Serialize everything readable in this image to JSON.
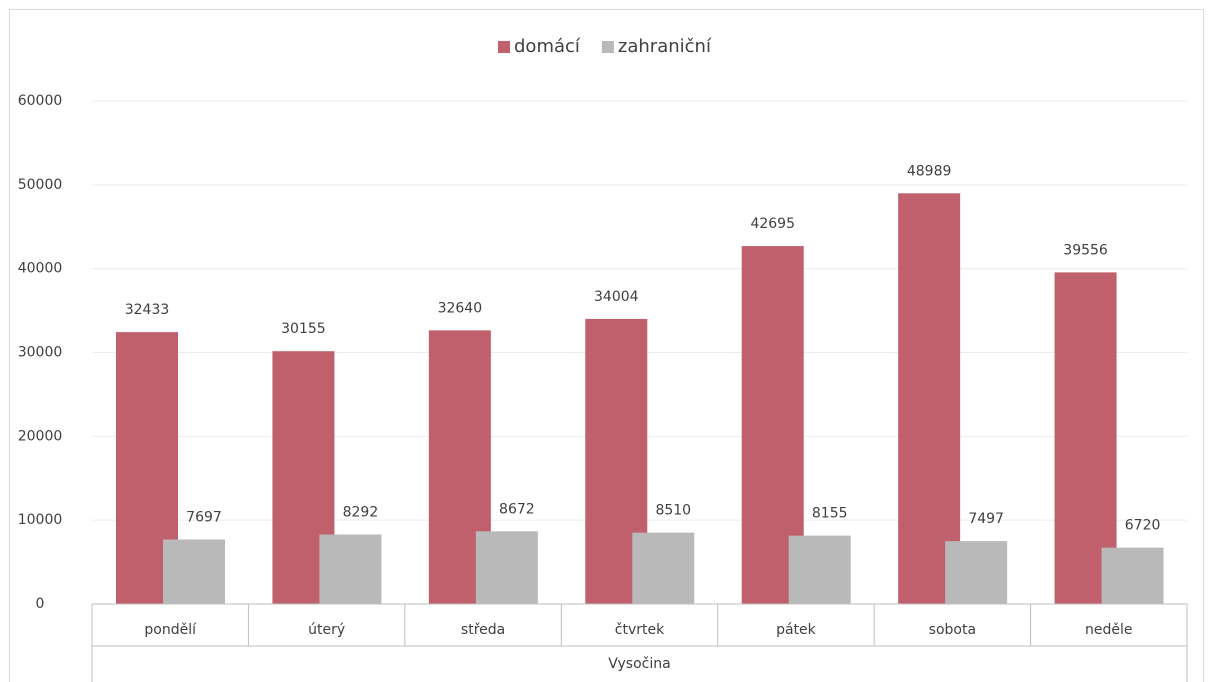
{
  "chart_data": {
    "type": "bar",
    "categories": [
      "pondělí",
      "úterý",
      "středa",
      "čtvrtek",
      "pátek",
      "sobota",
      "neděle"
    ],
    "group_label": "Vysočina",
    "series": [
      {
        "name": "domácí",
        "color": "#c0606c",
        "values": [
          32433,
          30155,
          32640,
          34004,
          42695,
          48989,
          39556
        ]
      },
      {
        "name": "zahraniční",
        "color": "#b9b9b9",
        "values": [
          7697,
          8292,
          8672,
          8510,
          8155,
          7497,
          6720
        ]
      }
    ],
    "ylim": [
      0,
      60000
    ],
    "yticks": [
      0,
      10000,
      20000,
      30000,
      40000,
      50000,
      60000
    ],
    "grid": true,
    "legend": "top"
  }
}
